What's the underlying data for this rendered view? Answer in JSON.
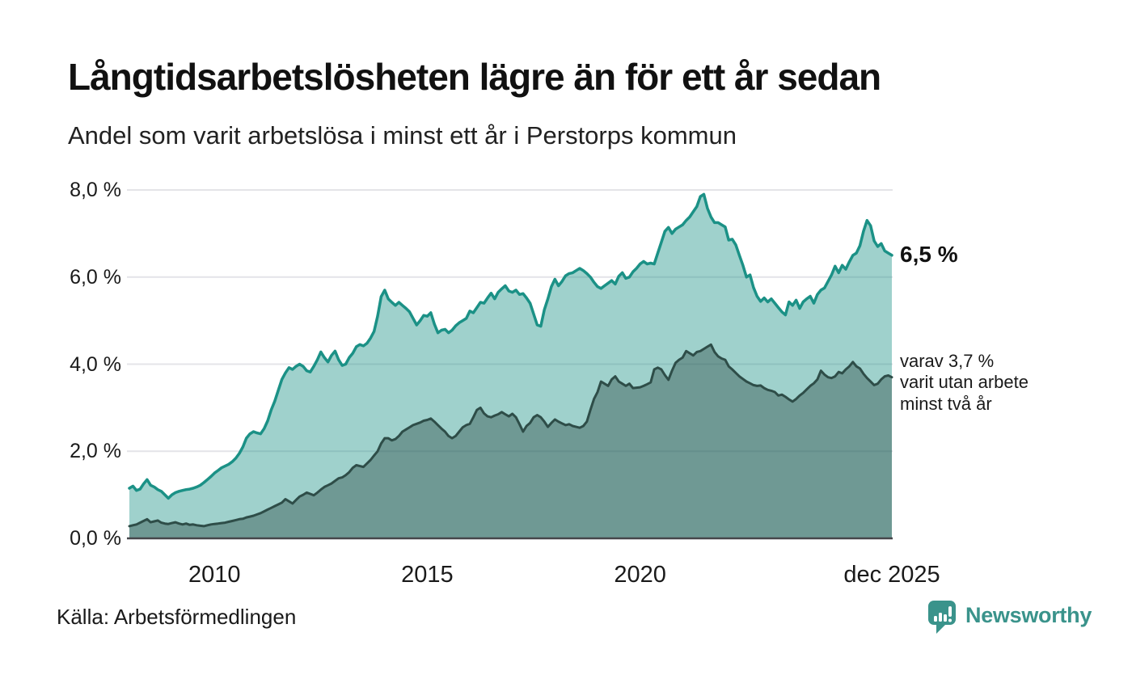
{
  "header": {
    "title": "Långtidsarbetslösheten lägre än för ett år sedan",
    "subtitle": "Andel som varit arbetslösa i minst ett år i Perstorps kommun"
  },
  "colors": {
    "accent_line": "#1b9186",
    "accent_fill": "rgba(27,145,134,0.42)",
    "dark_line": "#2e4d48",
    "dark_fill": "rgba(35,62,57,0.38)",
    "gridline": "#e4e4e8",
    "axis": "#46464a",
    "brand": "#3a938b",
    "text": "#1a1a1a"
  },
  "chart_data": {
    "type": "area",
    "title": "Långtidsarbetslösheten lägre än för ett år sedan",
    "subtitle": "Andel som varit arbetslösa i minst ett år i Perstorps kommun",
    "unit": "%",
    "x_start": "2008-01",
    "x_end": "2025-12",
    "points_per_year": 12,
    "ylim": [
      0,
      8
    ],
    "grid": "horizontal",
    "legend_position": "right-annotations",
    "y_ticks": [
      {
        "value": 8,
        "label": "8,0 %"
      },
      {
        "value": 6,
        "label": "6,0 %"
      },
      {
        "value": 4,
        "label": "4,0 %"
      },
      {
        "value": 2,
        "label": "2,0 %"
      },
      {
        "value": 0,
        "label": "0,0 %"
      }
    ],
    "x_ticks": [
      {
        "index": 24,
        "label": "2010"
      },
      {
        "index": 84,
        "label": "2015"
      },
      {
        "index": 144,
        "label": "2020"
      },
      {
        "index": 215,
        "label": "dec 2025"
      }
    ],
    "annotations": {
      "latest": "6,5 %",
      "latest_value": 6.5,
      "secondary_lines": [
        "varav 3,7 %",
        "varit utan arbete",
        "minst två år"
      ],
      "secondary_value": 3.7
    },
    "series": [
      {
        "name": "arbetslösa minst ett år",
        "color": "#1b9186",
        "fill": "rgba(27,145,134,0.42)",
        "line_width": 3.5,
        "values": [
          1.15,
          1.2,
          1.1,
          1.13,
          1.25,
          1.35,
          1.22,
          1.18,
          1.12,
          1.08,
          1.0,
          0.92,
          1.0,
          1.05,
          1.08,
          1.1,
          1.12,
          1.13,
          1.15,
          1.18,
          1.22,
          1.28,
          1.35,
          1.42,
          1.5,
          1.56,
          1.62,
          1.66,
          1.7,
          1.76,
          1.84,
          1.95,
          2.1,
          2.3,
          2.4,
          2.45,
          2.42,
          2.4,
          2.52,
          2.7,
          2.95,
          3.15,
          3.4,
          3.65,
          3.8,
          3.92,
          3.88,
          3.95,
          4.0,
          3.95,
          3.85,
          3.82,
          3.95,
          4.1,
          4.28,
          4.15,
          4.05,
          4.2,
          4.3,
          4.1,
          3.97,
          4.0,
          4.15,
          4.25,
          4.4,
          4.45,
          4.42,
          4.48,
          4.6,
          4.75,
          5.1,
          5.55,
          5.7,
          5.5,
          5.42,
          5.35,
          5.42,
          5.35,
          5.28,
          5.2,
          5.05,
          4.9,
          5.0,
          5.12,
          5.1,
          5.18,
          4.92,
          4.72,
          4.78,
          4.8,
          4.72,
          4.78,
          4.88,
          4.95,
          5.0,
          5.05,
          5.22,
          5.18,
          5.3,
          5.42,
          5.4,
          5.52,
          5.63,
          5.5,
          5.65,
          5.73,
          5.8,
          5.68,
          5.65,
          5.7,
          5.6,
          5.62,
          5.52,
          5.4,
          5.15,
          4.9,
          4.87,
          5.25,
          5.5,
          5.78,
          5.95,
          5.8,
          5.9,
          6.03,
          6.08,
          6.1,
          6.15,
          6.2,
          6.15,
          6.08,
          6.0,
          5.88,
          5.78,
          5.74,
          5.8,
          5.86,
          5.92,
          5.84,
          6.02,
          6.1,
          5.97,
          6.0,
          6.12,
          6.2,
          6.3,
          6.36,
          6.3,
          6.32,
          6.3,
          6.55,
          6.8,
          7.05,
          7.14,
          7.0,
          7.1,
          7.15,
          7.2,
          7.3,
          7.38,
          7.5,
          7.62,
          7.85,
          7.9,
          7.58,
          7.38,
          7.25,
          7.25,
          7.2,
          7.15,
          6.85,
          6.87,
          6.74,
          6.5,
          6.27,
          6.0,
          6.05,
          5.76,
          5.56,
          5.44,
          5.52,
          5.43,
          5.5,
          5.4,
          5.3,
          5.2,
          5.13,
          5.43,
          5.35,
          5.47,
          5.28,
          5.43,
          5.5,
          5.56,
          5.4,
          5.6,
          5.7,
          5.75,
          5.9,
          6.05,
          6.25,
          6.1,
          6.27,
          6.18,
          6.35,
          6.5,
          6.55,
          6.72,
          7.05,
          7.3,
          7.18,
          6.83,
          6.7,
          6.77,
          6.6,
          6.55,
          6.5
        ]
      },
      {
        "name": "varav arbetslösa minst två år",
        "color": "#2e4d48",
        "fill": "rgba(35,62,57,0.38)",
        "line_width": 3,
        "values": [
          0.28,
          0.3,
          0.32,
          0.36,
          0.4,
          0.44,
          0.37,
          0.39,
          0.41,
          0.36,
          0.34,
          0.33,
          0.35,
          0.37,
          0.34,
          0.32,
          0.34,
          0.31,
          0.32,
          0.3,
          0.29,
          0.28,
          0.3,
          0.32,
          0.33,
          0.34,
          0.35,
          0.36,
          0.38,
          0.4,
          0.42,
          0.44,
          0.45,
          0.48,
          0.5,
          0.52,
          0.55,
          0.58,
          0.62,
          0.66,
          0.7,
          0.74,
          0.78,
          0.82,
          0.9,
          0.85,
          0.8,
          0.88,
          0.96,
          1.0,
          1.05,
          1.02,
          0.99,
          1.05,
          1.12,
          1.18,
          1.22,
          1.26,
          1.32,
          1.38,
          1.4,
          1.45,
          1.52,
          1.62,
          1.68,
          1.66,
          1.64,
          1.72,
          1.8,
          1.9,
          2.0,
          2.18,
          2.3,
          2.3,
          2.25,
          2.28,
          2.35,
          2.45,
          2.5,
          2.55,
          2.6,
          2.63,
          2.66,
          2.7,
          2.72,
          2.75,
          2.68,
          2.6,
          2.52,
          2.45,
          2.35,
          2.3,
          2.35,
          2.45,
          2.55,
          2.6,
          2.63,
          2.78,
          2.95,
          3.0,
          2.87,
          2.8,
          2.78,
          2.82,
          2.85,
          2.9,
          2.85,
          2.8,
          2.86,
          2.78,
          2.62,
          2.45,
          2.58,
          2.65,
          2.78,
          2.83,
          2.78,
          2.68,
          2.56,
          2.65,
          2.73,
          2.68,
          2.64,
          2.6,
          2.62,
          2.58,
          2.56,
          2.54,
          2.58,
          2.68,
          2.95,
          3.2,
          3.36,
          3.6,
          3.55,
          3.5,
          3.65,
          3.72,
          3.6,
          3.55,
          3.5,
          3.55,
          3.45,
          3.46,
          3.47,
          3.5,
          3.54,
          3.58,
          3.88,
          3.92,
          3.88,
          3.75,
          3.64,
          3.85,
          4.03,
          4.1,
          4.15,
          4.3,
          4.25,
          4.2,
          4.28,
          4.3,
          4.35,
          4.4,
          4.45,
          4.28,
          4.18,
          4.13,
          4.1,
          3.95,
          3.88,
          3.8,
          3.72,
          3.66,
          3.6,
          3.56,
          3.52,
          3.5,
          3.51,
          3.45,
          3.41,
          3.39,
          3.36,
          3.28,
          3.3,
          3.25,
          3.19,
          3.14,
          3.2,
          3.28,
          3.34,
          3.42,
          3.5,
          3.56,
          3.65,
          3.85,
          3.76,
          3.7,
          3.68,
          3.72,
          3.82,
          3.79,
          3.88,
          3.95,
          4.05,
          3.95,
          3.9,
          3.78,
          3.68,
          3.6,
          3.52,
          3.55,
          3.65,
          3.72,
          3.74,
          3.7
        ]
      }
    ]
  },
  "footer": {
    "source": "Källa: Arbetsförmedlingen",
    "brand": "Newsworthy"
  }
}
